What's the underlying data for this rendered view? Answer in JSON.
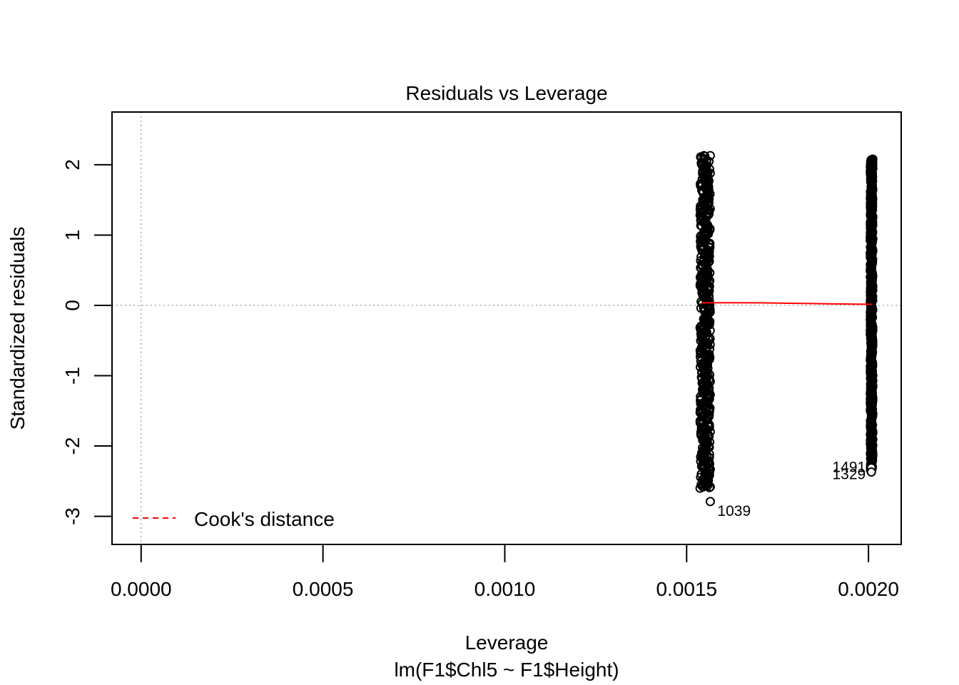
{
  "chart_data": {
    "type": "scatter",
    "title": "Residuals vs Leverage",
    "xlabel": "Leverage",
    "subtitle": "lm(F1$Chl5 ~ F1$Height)",
    "ylabel": "Standardized residuals",
    "xlim": [
      -8e-05,
      0.00209
    ],
    "ylim": [
      -3.4,
      2.75
    ],
    "xticks": [
      0.0,
      0.0005,
      0.001,
      0.0015,
      0.002
    ],
    "xtick_labels": [
      "0.0000",
      "0.0005",
      "0.0010",
      "0.0015",
      "0.0020"
    ],
    "yticks": [
      -3,
      -2,
      -1,
      0,
      1,
      2
    ],
    "ytick_labels": [
      "-3",
      "-2",
      "-1",
      "0",
      "1",
      "2"
    ],
    "reference_lines": {
      "x": 0,
      "y": 0,
      "style": "dotted",
      "color": "#bebebe"
    },
    "clusters": [
      {
        "x_min": 0.001537,
        "x_max": 0.001565,
        "y_min": -2.6,
        "y_max": 2.13
      },
      {
        "x_min": 0.002005,
        "x_max": 0.002012,
        "y_min": -2.34,
        "y_max": 2.08
      }
    ],
    "highlighted_points": [
      {
        "x": 0.001565,
        "y": 2.13
      },
      {
        "x": 0.001565,
        "y": 1.88
      },
      {
        "x": 0.00154,
        "y": -2.55
      },
      {
        "x": 0.00155,
        "y": -2.45
      },
      {
        "x": 0.001565,
        "y": -2.58
      },
      {
        "x": 0.001565,
        "y": -2.33
      },
      {
        "x": 0.002008,
        "y": -2.34
      },
      {
        "x": 0.002008,
        "y": -2.28
      }
    ],
    "labeled_points": [
      {
        "label": "1039",
        "x": 0.001565,
        "y": -2.79
      },
      {
        "label": "1491",
        "x": 0.002008,
        "y": -2.31
      },
      {
        "label": "1329",
        "x": 0.002008,
        "y": -2.37
      }
    ],
    "smoother": {
      "color": "#ff0000",
      "x": [
        0.00154,
        0.0016,
        0.0017,
        0.0018,
        0.0019,
        0.00201
      ],
      "y": [
        0.035,
        0.037,
        0.036,
        0.029,
        0.021,
        0.015
      ]
    },
    "legend": {
      "position": "bottom-left",
      "entries": [
        {
          "label": "Cook's distance",
          "color": "#ff0000",
          "style": "dashed"
        }
      ]
    },
    "grid": false
  }
}
